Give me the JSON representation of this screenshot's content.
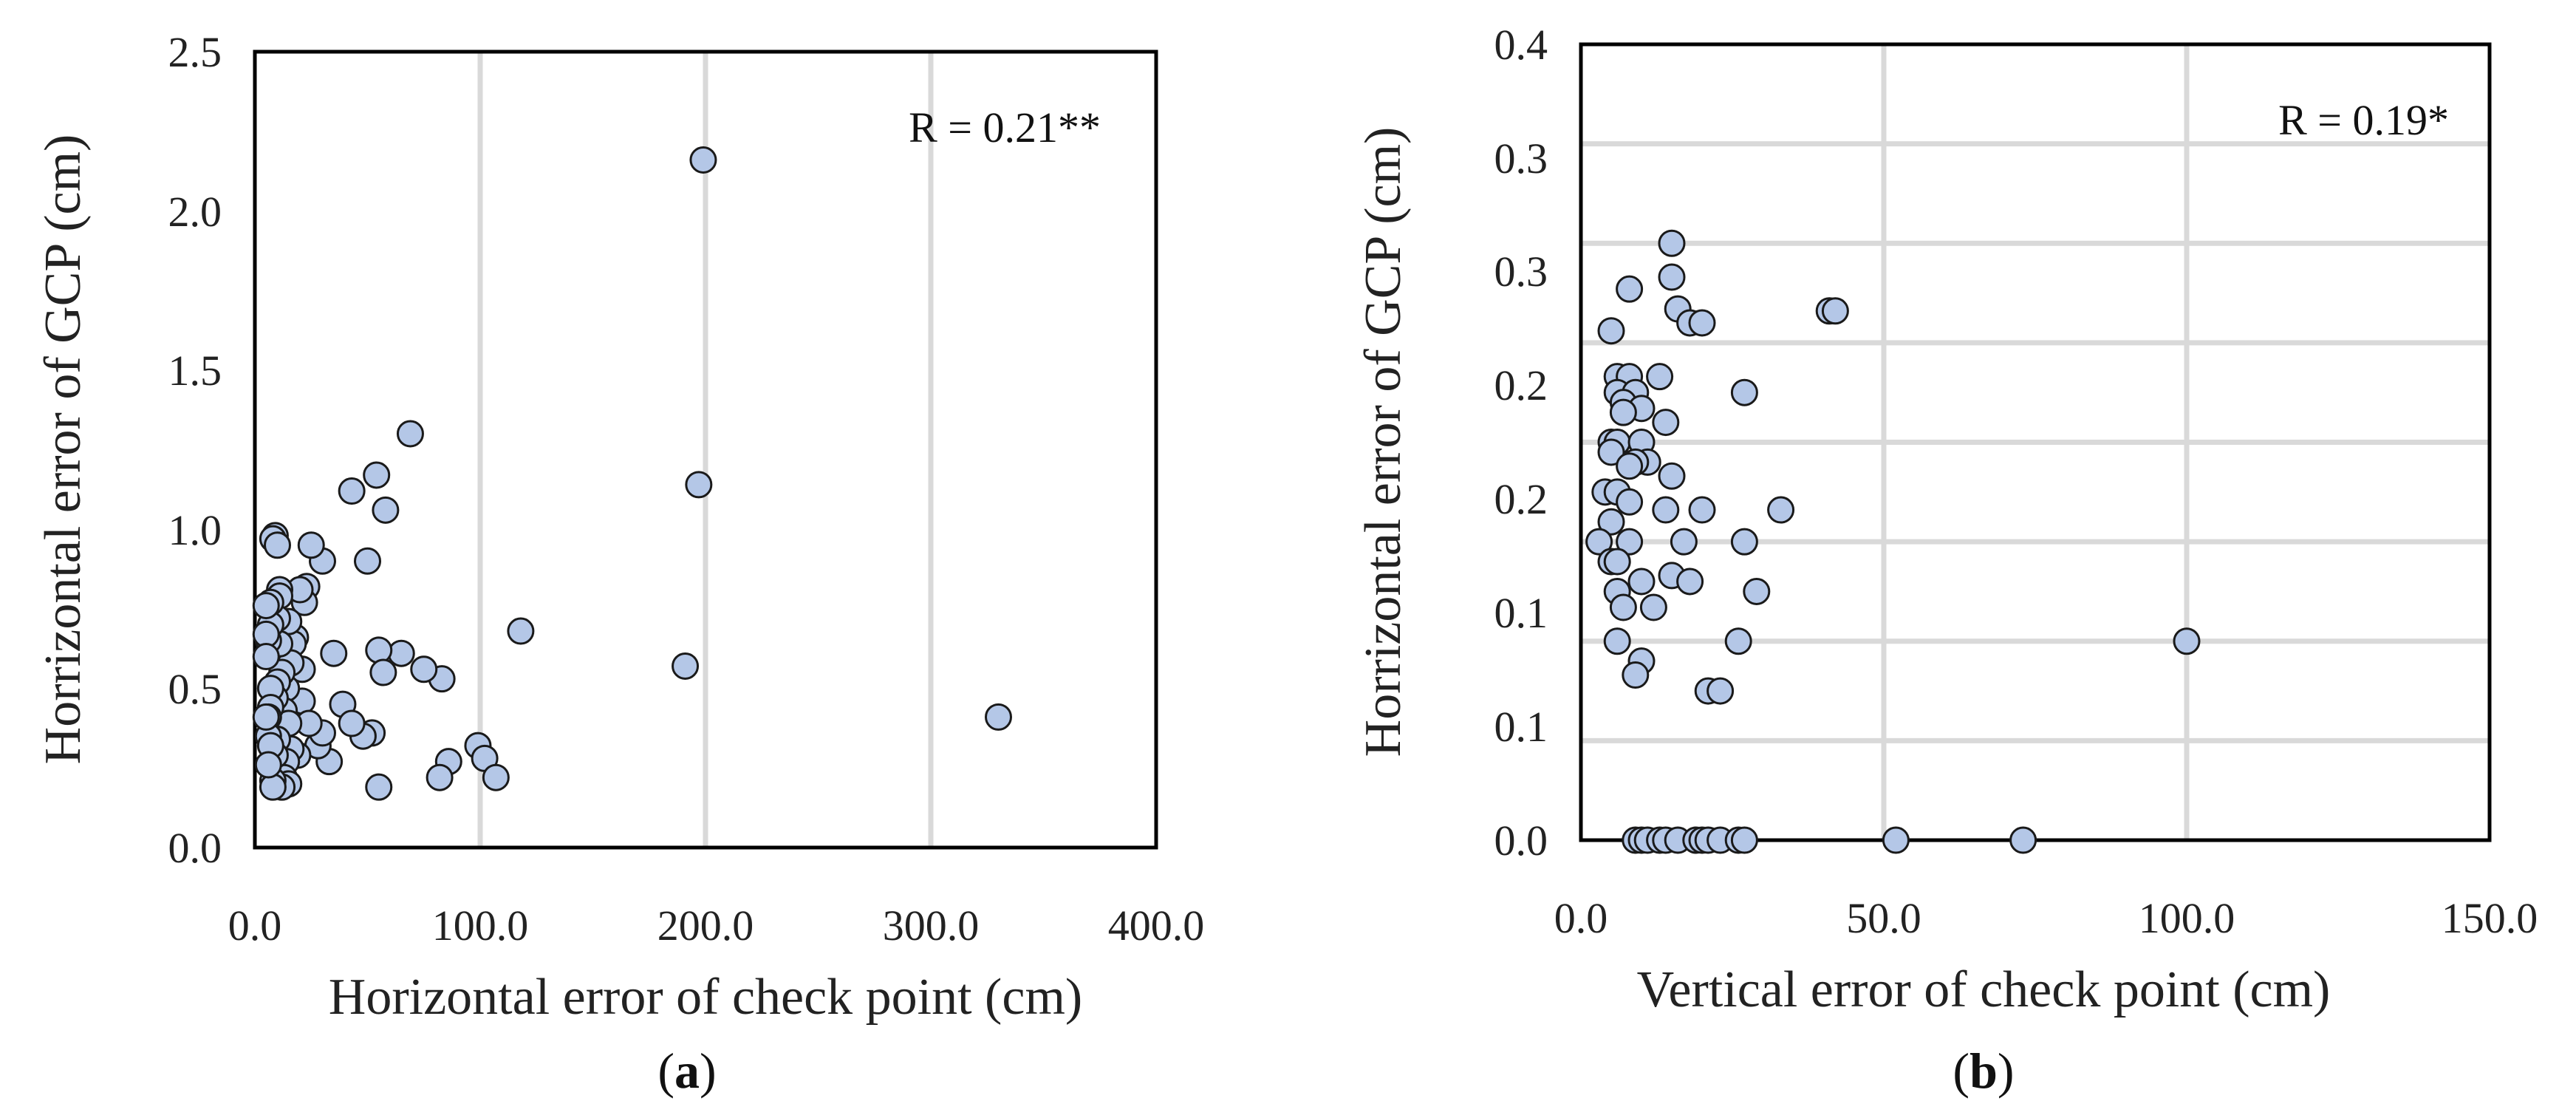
{
  "chart_data": [
    {
      "type": "scatter",
      "panel_label": "a",
      "title": "",
      "xlabel": "Horizontal error of check point (cm)",
      "ylabel": "Horrizontal error of GCP (cm)",
      "xlim": [
        0,
        400
      ],
      "ylim": [
        0,
        2.5
      ],
      "xticks": [
        "0.0",
        "100.0",
        "200.0",
        "300.0",
        "400.0"
      ],
      "yticks": [
        "0.0",
        "0.5",
        "1.0",
        "1.5",
        "2.0",
        "2.5"
      ],
      "grid": "vertical",
      "annotation": "R = 0.21**",
      "annotation_position": "top-right",
      "point_color": "#b4c7e7",
      "points": [
        [
          199,
          2.16
        ],
        [
          197,
          1.14
        ],
        [
          191,
          0.57
        ],
        [
          330,
          0.41
        ],
        [
          118,
          0.68
        ],
        [
          99,
          0.32
        ],
        [
          102,
          0.28
        ],
        [
          107,
          0.22
        ],
        [
          86,
          0.27
        ],
        [
          82,
          0.22
        ],
        [
          83,
          0.53
        ],
        [
          75,
          0.56
        ],
        [
          65,
          0.61
        ],
        [
          69,
          1.3
        ],
        [
          54,
          1.17
        ],
        [
          58,
          1.06
        ],
        [
          43,
          1.12
        ],
        [
          55,
          0.62
        ],
        [
          57,
          0.55
        ],
        [
          50,
          0.9
        ],
        [
          52,
          0.36
        ],
        [
          48,
          0.35
        ],
        [
          55,
          0.19
        ],
        [
          39,
          0.45
        ],
        [
          43,
          0.39
        ],
        [
          35,
          0.61
        ],
        [
          33,
          0.27
        ],
        [
          28,
          0.32
        ],
        [
          30,
          0.36
        ],
        [
          30,
          0.9
        ],
        [
          25,
          0.95
        ],
        [
          23,
          0.82
        ],
        [
          22,
          0.77
        ],
        [
          20,
          0.81
        ],
        [
          21,
          0.56
        ],
        [
          21,
          0.46
        ],
        [
          24,
          0.39
        ],
        [
          19,
          0.29
        ],
        [
          18,
          0.66
        ],
        [
          17,
          0.64
        ],
        [
          16,
          0.58
        ],
        [
          15,
          0.71
        ],
        [
          14,
          0.5
        ],
        [
          13,
          0.43
        ],
        [
          15,
          0.39
        ],
        [
          16,
          0.31
        ],
        [
          14,
          0.27
        ],
        [
          13,
          0.22
        ],
        [
          15,
          0.2
        ],
        [
          12,
          0.19
        ],
        [
          11,
          0.81
        ],
        [
          11,
          0.79
        ],
        [
          10,
          0.72
        ],
        [
          11,
          0.64
        ],
        [
          9,
          0.98
        ],
        [
          8,
          0.97
        ],
        [
          10,
          0.95
        ],
        [
          12,
          0.55
        ],
        [
          10,
          0.52
        ],
        [
          9,
          0.47
        ],
        [
          10,
          0.34
        ],
        [
          9,
          0.29
        ],
        [
          8,
          0.21
        ],
        [
          8,
          0.19
        ],
        [
          7,
          0.77
        ],
        [
          7,
          0.7
        ],
        [
          6,
          0.65
        ],
        [
          7,
          0.5
        ],
        [
          7,
          0.44
        ],
        [
          6,
          0.41
        ],
        [
          6,
          0.35
        ],
        [
          7,
          0.32
        ],
        [
          6,
          0.26
        ],
        [
          5,
          0.76
        ],
        [
          5,
          0.67
        ],
        [
          5,
          0.6
        ],
        [
          5,
          0.41
        ]
      ]
    },
    {
      "type": "scatter",
      "panel_label": "b",
      "title": "",
      "xlabel": "Vertical error of check point (cm)",
      "ylabel": "Horrizontal error of GCP (cm)",
      "xlim": [
        0,
        150
      ],
      "ylim": [
        0,
        0.4
      ],
      "xticks": [
        "0.0",
        "50.0",
        "100.0",
        "150.0"
      ],
      "yticks": [
        "0.0",
        "0.1",
        "0.1",
        "0.2",
        "0.2",
        "0.3",
        "0.3",
        "0.4"
      ],
      "grid": "both",
      "annotation": "R = 0.19*",
      "annotation_position": "top-right",
      "point_color": "#b4c7e7",
      "points": [
        [
          100,
          0.1
        ],
        [
          41,
          0.266
        ],
        [
          42,
          0.266
        ],
        [
          52,
          0.0
        ],
        [
          73,
          0.0
        ],
        [
          15,
          0.3
        ],
        [
          15,
          0.283
        ],
        [
          16,
          0.267
        ],
        [
          18,
          0.26
        ],
        [
          20,
          0.26
        ],
        [
          8,
          0.277
        ],
        [
          5,
          0.256
        ],
        [
          27,
          0.225
        ],
        [
          6,
          0.233
        ],
        [
          8,
          0.233
        ],
        [
          13,
          0.233
        ],
        [
          6,
          0.225
        ],
        [
          9,
          0.225
        ],
        [
          7,
          0.22
        ],
        [
          10,
          0.217
        ],
        [
          7,
          0.215
        ],
        [
          14,
          0.21
        ],
        [
          5,
          0.2
        ],
        [
          6,
          0.2
        ],
        [
          10,
          0.2
        ],
        [
          11,
          0.19
        ],
        [
          5,
          0.195
        ],
        [
          9,
          0.19
        ],
        [
          8,
          0.188
        ],
        [
          15,
          0.183
        ],
        [
          4,
          0.175
        ],
        [
          6,
          0.175
        ],
        [
          8,
          0.17
        ],
        [
          14,
          0.166
        ],
        [
          20,
          0.166
        ],
        [
          33,
          0.166
        ],
        [
          5,
          0.16
        ],
        [
          3,
          0.15
        ],
        [
          8,
          0.15
        ],
        [
          17,
          0.15
        ],
        [
          27,
          0.15
        ],
        [
          5,
          0.14
        ],
        [
          6,
          0.14
        ],
        [
          15,
          0.133
        ],
        [
          10,
          0.13
        ],
        [
          18,
          0.13
        ],
        [
          29,
          0.125
        ],
        [
          6,
          0.125
        ],
        [
          7,
          0.117
        ],
        [
          12,
          0.117
        ],
        [
          6,
          0.1
        ],
        [
          26,
          0.1
        ],
        [
          10,
          0.09
        ],
        [
          9,
          0.083
        ],
        [
          21,
          0.075
        ],
        [
          23,
          0.075
        ],
        [
          9,
          0.0
        ],
        [
          10,
          0.0
        ],
        [
          11,
          0.0
        ],
        [
          13,
          0.0
        ],
        [
          14,
          0.0
        ],
        [
          16,
          0.0
        ],
        [
          19,
          0.0
        ],
        [
          20,
          0.0
        ],
        [
          21,
          0.0
        ],
        [
          23,
          0.0
        ],
        [
          26,
          0.0
        ],
        [
          27,
          0.0
        ]
      ]
    }
  ]
}
